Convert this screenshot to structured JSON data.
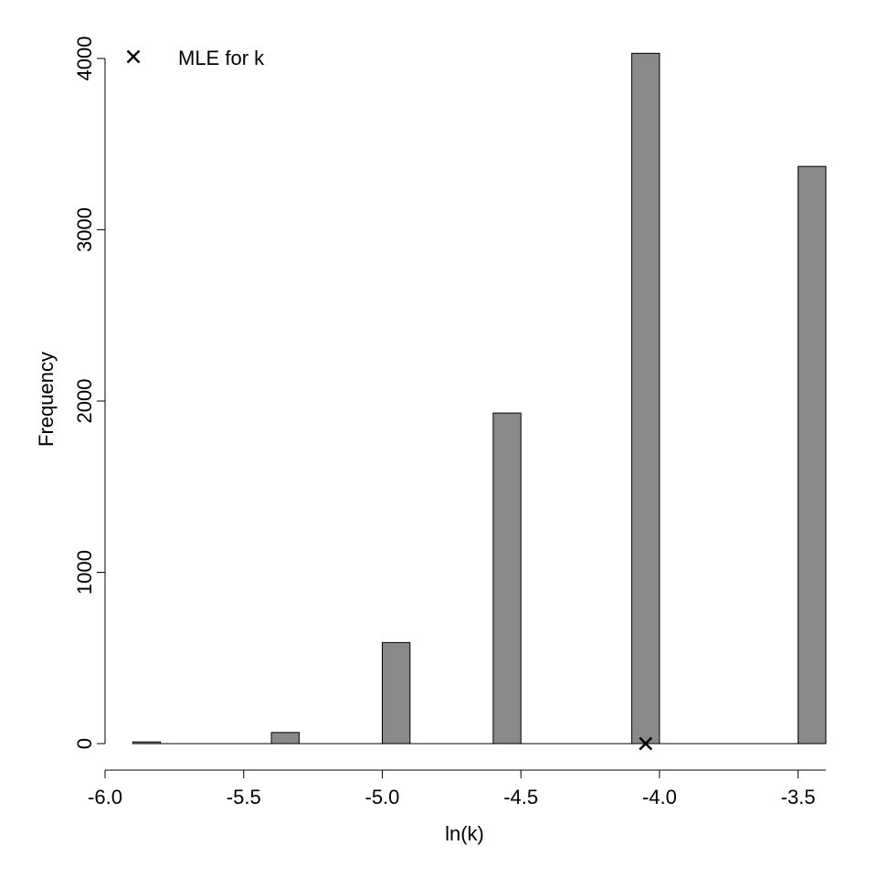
{
  "chart_data": {
    "type": "bar",
    "title": "",
    "xlabel": "ln(k)",
    "ylabel": "Frequency",
    "xlim": [
      -6.0,
      -3.4
    ],
    "ylim": [
      0,
      4000
    ],
    "x_ticks": [
      -6.0,
      -5.5,
      -5.0,
      -4.5,
      -4.0,
      -3.5
    ],
    "x_tick_labels": [
      "-6.0",
      "-5.5",
      "-5.0",
      "-4.5",
      "-4.0",
      "-3.5"
    ],
    "y_ticks": [
      0,
      1000,
      2000,
      3000,
      4000
    ],
    "y_tick_labels": [
      "0",
      "1000",
      "2000",
      "3000",
      "4000"
    ],
    "bar_width": 0.1,
    "bars": [
      {
        "x": -5.85,
        "value": 10
      },
      {
        "x": -5.35,
        "value": 65
      },
      {
        "x": -4.95,
        "value": 590
      },
      {
        "x": -4.55,
        "value": 1930
      },
      {
        "x": -4.05,
        "value": 4030
      },
      {
        "x": -3.45,
        "value": 3370
      }
    ],
    "bar_color": "#898989",
    "marker": {
      "label": "MLE for k",
      "x": -4.05,
      "y": 0,
      "symbol": "x"
    },
    "legend": {
      "position": "top-left",
      "entries": [
        {
          "symbol": "x",
          "label": "MLE for k"
        }
      ]
    },
    "grid": false
  }
}
